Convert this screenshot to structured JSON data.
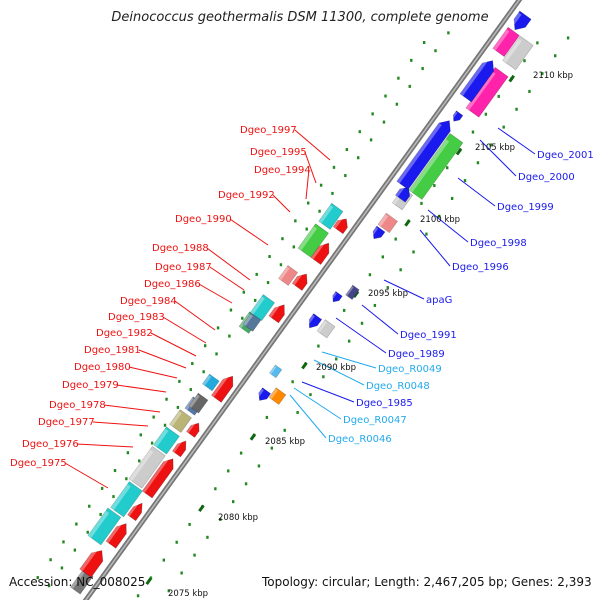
{
  "title": "Deinococcus geothermalis DSM 11300, complete genome",
  "footer": {
    "accession": "Accession: NC_008025",
    "summary": "Topology: circular; Length: 2,467,205 bp; Genes: 2,393"
  },
  "colors": {
    "strand_red": "#ee1111",
    "strand_blue": "#1a1aee",
    "rna_label": "#22aaee",
    "cyan_feature": "#22cccc",
    "green_feature": "#44cc44",
    "pink_feature": "#ff22aa",
    "gray_feature": "#cccccc",
    "tick_green": "#228822"
  },
  "kbp_labels": [
    "2075 kbp",
    "2080 kbp",
    "2085 kbp",
    "2090 kbp",
    "2095 kbp",
    "2100 kbp",
    "2105 kbp",
    "2110 kbp"
  ],
  "left_labels": [
    "Dgeo_1997",
    "Dgeo_1995",
    "Dgeo_1994",
    "Dgeo_1992",
    "Dgeo_1990",
    "Dgeo_1988",
    "Dgeo_1987",
    "Dgeo_1986",
    "Dgeo_1984",
    "Dgeo_1983",
    "Dgeo_1982",
    "Dgeo_1981",
    "Dgeo_1980",
    "Dgeo_1979",
    "Dgeo_1978",
    "Dgeo_1977",
    "Dgeo_1976",
    "Dgeo_1975"
  ],
  "right_labels": [
    "Dgeo_2001",
    "Dgeo_2000",
    "Dgeo_1999",
    "Dgeo_1998",
    "Dgeo_1996",
    "apaG",
    "Dgeo_1991",
    "Dgeo_1989",
    "Dgeo_R0049",
    "Dgeo_R0048",
    "Dgeo_1985",
    "Dgeo_R0047",
    "Dgeo_R0046"
  ]
}
